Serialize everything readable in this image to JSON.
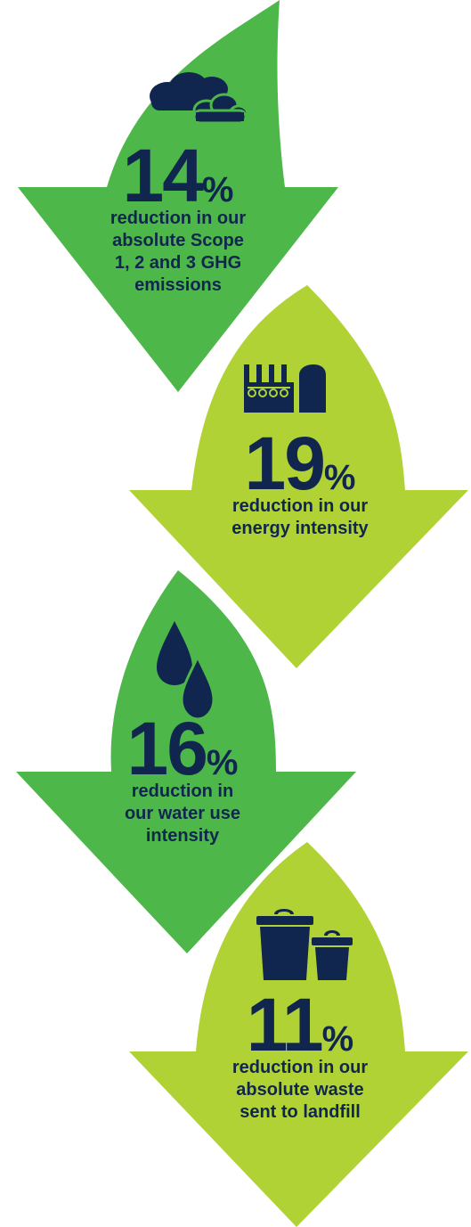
{
  "colors": {
    "dark_green": "#4db849",
    "light_green": "#b1d235",
    "navy": "#10264e"
  },
  "stats": [
    {
      "icon": "cloud-icon",
      "value": "14",
      "unit": "%",
      "caption_lines": [
        "reduction in our",
        "absolute Scope",
        "1, 2 and 3 GHG",
        "emissions"
      ],
      "color": "dark_green"
    },
    {
      "icon": "factory-icon",
      "value": "19",
      "unit": "%",
      "caption_lines": [
        "reduction in our",
        "energy intensity"
      ],
      "color": "light_green"
    },
    {
      "icon": "water-drops-icon",
      "value": "16",
      "unit": "%",
      "caption_lines": [
        "reduction in",
        "our water use",
        "intensity"
      ],
      "color": "dark_green"
    },
    {
      "icon": "bins-icon",
      "value": "11",
      "unit": "%",
      "caption_lines": [
        "reduction in our",
        "absolute waste",
        "sent to landfill"
      ],
      "color": "light_green"
    }
  ]
}
